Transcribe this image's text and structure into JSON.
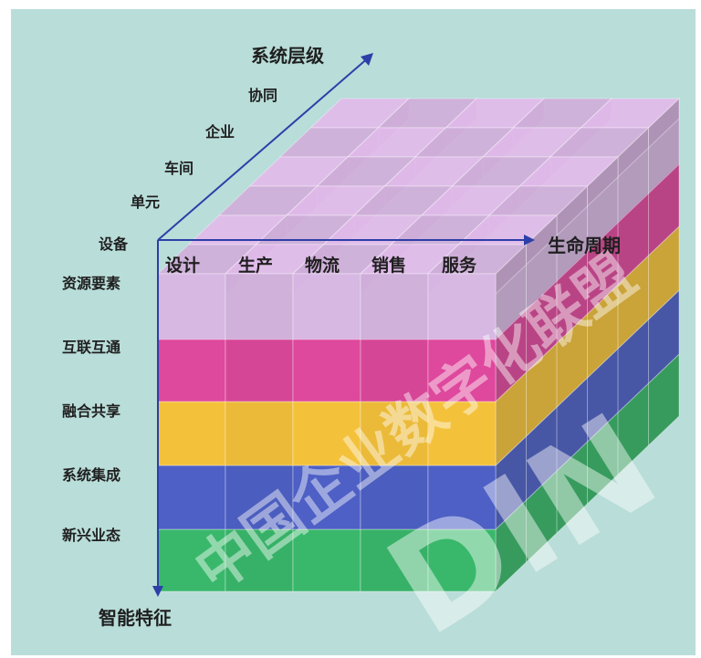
{
  "diagram": {
    "axes": {
      "system_level": "系统层级",
      "lifecycle": "生命周期",
      "intelligent_features": "智能特征"
    },
    "system_levels": [
      "设备",
      "单元",
      "车间",
      "企业",
      "协同"
    ],
    "lifecycle_stages": [
      "设计",
      "生产",
      "物流",
      "销售",
      "服务"
    ],
    "intelligent_features": [
      "资源要素",
      "互联互通",
      "融合共享",
      "系统集成",
      "新兴业态"
    ],
    "layer_colors": [
      "#d9b6e3",
      "#e0429a",
      "#f7c034",
      "#4a5bc4",
      "#34b666"
    ],
    "axis_color": "#2d3fa8",
    "background": "#b9ddd9",
    "watermark": {
      "text": "中国企业数字化联盟",
      "letters": "DIN",
      "color": "#ffffff"
    }
  }
}
